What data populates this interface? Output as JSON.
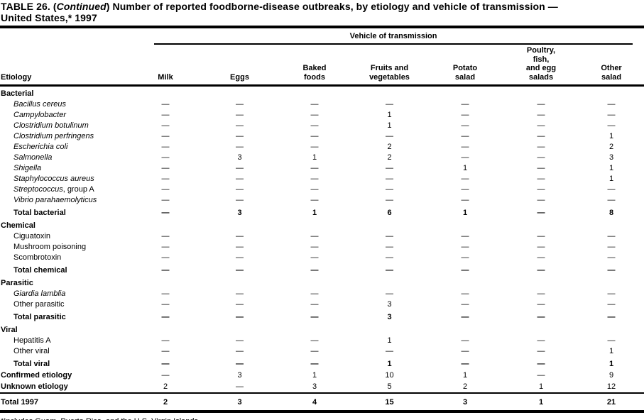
{
  "title": {
    "prefix": "TABLE 26. (",
    "continued": "Continued",
    "suffix": ") Number of reported foodborne-disease outbreaks, by etiology and vehicle of transmission —",
    "line2": "United States,* 1997"
  },
  "columns": {
    "etiology": "Etiology",
    "vehicle_header": "Vehicle of transmission",
    "items": [
      "Milk",
      "Eggs",
      "Baked\nfoods",
      "Fruits and\nvegetables",
      "Potato\nsalad",
      "Poultry,\nfish,\nand egg\nsalads",
      "Other\nsalad"
    ]
  },
  "table": {
    "rows": [
      {
        "type": "section",
        "label": "Bacterial"
      },
      {
        "type": "item",
        "italic": true,
        "label": "Bacillus cereus",
        "values": [
          "—",
          "—",
          "—",
          "—",
          "—",
          "—",
          "—"
        ]
      },
      {
        "type": "item",
        "italic": true,
        "label": "Campylobacter",
        "values": [
          "—",
          "—",
          "—",
          "1",
          "—",
          "—",
          "—"
        ]
      },
      {
        "type": "item",
        "italic": true,
        "label": "Clostridium botulinum",
        "values": [
          "—",
          "—",
          "—",
          "1",
          "—",
          "—",
          "—"
        ]
      },
      {
        "type": "item",
        "italic": true,
        "label": "Clostridium perfringens",
        "values": [
          "—",
          "—",
          "—",
          "—",
          "—",
          "—",
          "1"
        ]
      },
      {
        "type": "item",
        "italic": true,
        "label": "Escherichia coli",
        "values": [
          "—",
          "—",
          "—",
          "2",
          "—",
          "—",
          "2"
        ]
      },
      {
        "type": "item",
        "italic": true,
        "label": "Salmonella",
        "values": [
          "—",
          "3",
          "1",
          "2",
          "—",
          "—",
          "3"
        ]
      },
      {
        "type": "item",
        "italic": true,
        "label": "Shigella",
        "values": [
          "—",
          "—",
          "—",
          "—",
          "1",
          "—",
          "1"
        ]
      },
      {
        "type": "item",
        "italic": true,
        "label": "Staphylococcus aureus",
        "values": [
          "—",
          "—",
          "—",
          "—",
          "—",
          "—",
          "1"
        ]
      },
      {
        "type": "item",
        "italic": true,
        "label": "Streptococcus",
        "suffix": ", group A",
        "values": [
          "—",
          "—",
          "—",
          "—",
          "—",
          "—",
          "—"
        ]
      },
      {
        "type": "item",
        "italic": true,
        "label": "Vibrio parahaemolyticus",
        "values": [
          "—",
          "—",
          "—",
          "—",
          "—",
          "—",
          "—"
        ]
      },
      {
        "type": "total",
        "label": "Total bacterial",
        "values": [
          "—",
          "3",
          "1",
          "6",
          "1",
          "—",
          "8"
        ]
      },
      {
        "type": "section",
        "label": "Chemical"
      },
      {
        "type": "item",
        "label": "Ciguatoxin",
        "values": [
          "—",
          "—",
          "—",
          "—",
          "—",
          "—",
          "—"
        ]
      },
      {
        "type": "item",
        "label": "Mushroom poisoning",
        "values": [
          "—",
          "—",
          "—",
          "—",
          "—",
          "—",
          "—"
        ]
      },
      {
        "type": "item",
        "label": "Scombrotoxin",
        "values": [
          "—",
          "—",
          "—",
          "—",
          "—",
          "—",
          "—"
        ]
      },
      {
        "type": "total",
        "label": "Total chemical",
        "values": [
          "—",
          "—",
          "—",
          "—",
          "—",
          "—",
          "—"
        ]
      },
      {
        "type": "section",
        "label": "Parasitic"
      },
      {
        "type": "item",
        "italic": true,
        "label": "Giardia lamblia",
        "values": [
          "—",
          "—",
          "—",
          "—",
          "—",
          "—",
          "—"
        ]
      },
      {
        "type": "item",
        "label": "Other parasitic",
        "values": [
          "—",
          "—",
          "—",
          "3",
          "—",
          "—",
          "—"
        ]
      },
      {
        "type": "total",
        "label": "Total parasitic",
        "values": [
          "—",
          "—",
          "—",
          "3",
          "—",
          "—",
          "—"
        ]
      },
      {
        "type": "section",
        "label": "Viral"
      },
      {
        "type": "item",
        "label": "Hepatitis A",
        "values": [
          "—",
          "—",
          "—",
          "1",
          "—",
          "—",
          "—"
        ]
      },
      {
        "type": "item",
        "label": "Other viral",
        "values": [
          "—",
          "—",
          "—",
          "—",
          "—",
          "—",
          "1"
        ]
      },
      {
        "type": "total",
        "label": "Total viral",
        "values": [
          "—",
          "—",
          "—",
          "1",
          "—",
          "—",
          "1"
        ]
      },
      {
        "type": "summary",
        "label": "Confirmed etiology",
        "values": [
          "—",
          "3",
          "1",
          "10",
          "1",
          "—",
          "9"
        ]
      },
      {
        "type": "summary",
        "label": "Unknown etiology",
        "values": [
          "2",
          "—",
          "3",
          "5",
          "2",
          "1",
          "12"
        ]
      },
      {
        "type": "grand",
        "label": "Total 1997",
        "values": [
          "2",
          "3",
          "4",
          "15",
          "3",
          "1",
          "21"
        ]
      }
    ]
  },
  "footnote": "*Includes Guam, Puerto Rico, and the U.S. Virgin Islands."
}
